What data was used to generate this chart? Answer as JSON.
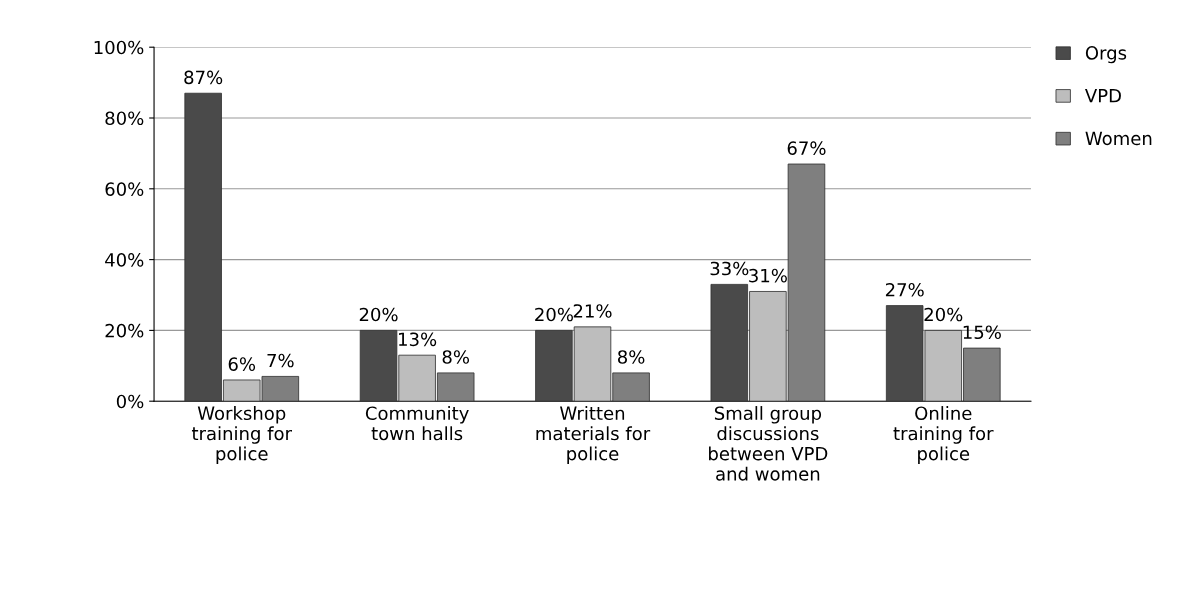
{
  "chart_data": {
    "type": "bar",
    "categories": [
      "Workshop\ntraining for\npolice",
      "Community\ntown halls",
      "Written\nmaterials for\npolice",
      "Small group\ndiscussions\nbetween VPD\nand women",
      "Online\ntraining for\npolice"
    ],
    "series": [
      {
        "name": "Orgs",
        "color": "#4a4a4a",
        "values": [
          87,
          20,
          20,
          33,
          27
        ],
        "value_labels": [
          "87%",
          "20%",
          "20%",
          "33%",
          "27%"
        ]
      },
      {
        "name": "VPD",
        "color": "#bdbdbd",
        "values": [
          6,
          13,
          21,
          31,
          20
        ],
        "value_labels": [
          "6%",
          "13%",
          "21%",
          "31%",
          "20%"
        ]
      },
      {
        "name": "Women",
        "color": "#7f7f7f",
        "values": [
          7,
          8,
          8,
          67,
          15
        ],
        "value_labels": [
          "7%",
          "8%",
          "8%",
          "67%",
          "15%"
        ]
      }
    ],
    "ylim": [
      0,
      100
    ],
    "yticks": [
      {
        "value": 0,
        "label": "0%"
      },
      {
        "value": 20,
        "label": "20%"
      },
      {
        "value": 40,
        "label": "40%"
      },
      {
        "value": 60,
        "label": "60%"
      },
      {
        "value": 80,
        "label": "80%"
      },
      {
        "value": 100,
        "label": "100%"
      }
    ],
    "grid": "y",
    "legend": "top right"
  }
}
